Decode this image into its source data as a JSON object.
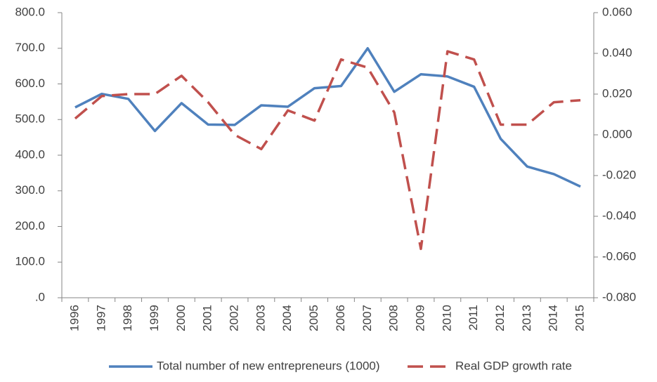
{
  "chart_data": {
    "type": "line",
    "categories": [
      "1996",
      "1997",
      "1998",
      "1999",
      "2000",
      "2001",
      "2002",
      "2003",
      "2004",
      "2005",
      "2006",
      "2007",
      "2008",
      "2009",
      "2010",
      "2011",
      "2012",
      "2013",
      "2014",
      "2015"
    ],
    "series": [
      {
        "name": "Total number of new entrepreneurs (1000)",
        "color": "#4f81bd",
        "dash": false,
        "values": [
          534,
          572,
          558,
          468,
          546,
          486,
          485,
          540,
          536,
          588,
          594,
          700,
          578,
          627,
          621,
          592,
          446,
          368,
          347,
          312
        ]
      },
      {
        "name": "Real GDP growth rate",
        "color": "#c0504d",
        "dash": true,
        "axis": "y2",
        "values": [
          0.008,
          0.019,
          0.02,
          0.02,
          0.029,
          0.016,
          0.0,
          -0.007,
          0.012,
          0.007,
          0.037,
          0.033,
          0.011,
          -0.056,
          0.041,
          0.037,
          0.005,
          0.005,
          0.016,
          0.017
        ]
      }
    ],
    "ylim": [
      0,
      800
    ],
    "yticks": [
      {
        "value": 0,
        "label": ".0"
      },
      {
        "value": 100,
        "label": "100.0"
      },
      {
        "value": 200,
        "label": "200.0"
      },
      {
        "value": 300,
        "label": "300.0"
      },
      {
        "value": 400,
        "label": "400.0"
      },
      {
        "value": 500,
        "label": "500.0"
      },
      {
        "value": 600,
        "label": "600.0"
      },
      {
        "value": 700,
        "label": "700.0"
      },
      {
        "value": 800,
        "label": "800.0"
      }
    ],
    "y2lim": [
      -0.08,
      0.06
    ],
    "y2ticks": [
      {
        "value": -0.08,
        "label": "-0.080"
      },
      {
        "value": -0.06,
        "label": "-0.060"
      },
      {
        "value": -0.04,
        "label": "-0.040"
      },
      {
        "value": -0.02,
        "label": "-0.020"
      },
      {
        "value": 0,
        "label": "0.000"
      },
      {
        "value": 0.02,
        "label": "0.020"
      },
      {
        "value": 0.04,
        "label": "0.040"
      },
      {
        "value": 0.06,
        "label": "0.060"
      }
    ],
    "grid": false,
    "legend": "bottom"
  }
}
